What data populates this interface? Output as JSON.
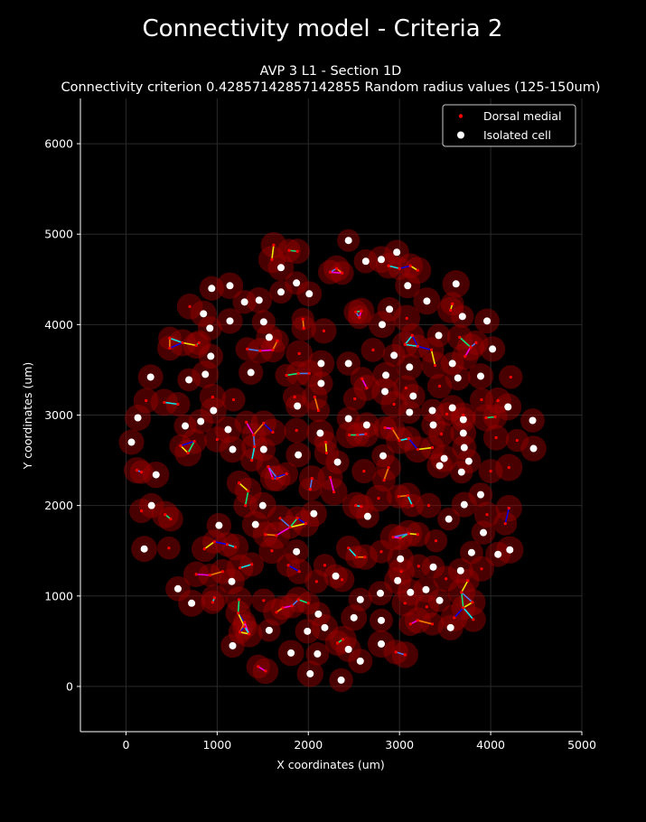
{
  "figure": {
    "suptitle": "Connectivity model - Criteria 2",
    "background_color": "#000000",
    "foreground_color": "#ffffff"
  },
  "chart_data": {
    "type": "scatter",
    "title_line1": "AVP 3 L1 - Section 1D",
    "title_line2": "Connectivity criterion 0.42857142857142855  Random radius values (125-150um)",
    "xlabel": "X coordinates (um)",
    "ylabel": "Y coordinates (um)",
    "xlim": [
      -500,
      5000
    ],
    "ylim": [
      -500,
      6500
    ],
    "xticks": [
      0,
      1000,
      2000,
      3000,
      4000,
      5000
    ],
    "yticks": [
      0,
      1000,
      2000,
      3000,
      4000,
      5000,
      6000
    ],
    "grid": true,
    "legend_position": "top-right",
    "legend": [
      {
        "label": "Dorsal medial",
        "color": "#ff0000",
        "marker": "small-dot"
      },
      {
        "label": "Isolated cell",
        "color": "#ffffff",
        "marker": "dot"
      }
    ],
    "edge_colors": [
      "#ffff00",
      "#00ff88",
      "#4488ff",
      "#ff00ff",
      "#ff8800",
      "#00ffff",
      "#0000ff"
    ],
    "series": [
      {
        "name": "Isolated cell",
        "color": "#ffffff",
        "points": [
          [
            2440,
            4930
          ],
          [
            2970,
            4800
          ],
          [
            2800,
            4720
          ],
          [
            2630,
            4700
          ],
          [
            1700,
            4630
          ],
          [
            1870,
            4460
          ],
          [
            3090,
            4430
          ],
          [
            3620,
            4450
          ],
          [
            940,
            4400
          ],
          [
            1140,
            4430
          ],
          [
            1300,
            4250
          ],
          [
            1460,
            4270
          ],
          [
            1700,
            4360
          ],
          [
            2010,
            4340
          ],
          [
            3300,
            4260
          ],
          [
            2890,
            4170
          ],
          [
            850,
            4120
          ],
          [
            1510,
            4030
          ],
          [
            1140,
            4040
          ],
          [
            3690,
            4090
          ],
          [
            3960,
            4040
          ],
          [
            2810,
            4000
          ],
          [
            920,
            3960
          ],
          [
            1570,
            3860
          ],
          [
            3430,
            3880
          ],
          [
            4020,
            3730
          ],
          [
            2940,
            3660
          ],
          [
            930,
            3650
          ],
          [
            2140,
            3570
          ],
          [
            2440,
            3570
          ],
          [
            3110,
            3530
          ],
          [
            3580,
            3570
          ],
          [
            270,
            3420
          ],
          [
            870,
            3450
          ],
          [
            1370,
            3470
          ],
          [
            2850,
            3440
          ],
          [
            2140,
            3350
          ],
          [
            3890,
            3430
          ],
          [
            690,
            3390
          ],
          [
            3640,
            3410
          ],
          [
            2840,
            3260
          ],
          [
            3150,
            3210
          ],
          [
            960,
            3050
          ],
          [
            1880,
            3100
          ],
          [
            3580,
            3080
          ],
          [
            3110,
            3030
          ],
          [
            3700,
            2950
          ],
          [
            4190,
            3090
          ],
          [
            4460,
            2940
          ],
          [
            130,
            2970
          ],
          [
            2440,
            2960
          ],
          [
            2640,
            2890
          ],
          [
            650,
            2880
          ],
          [
            820,
            2930
          ],
          [
            1120,
            2840
          ],
          [
            3370,
            2890
          ],
          [
            3700,
            2800
          ],
          [
            3360,
            3050
          ],
          [
            60,
            2700
          ],
          [
            2130,
            2800
          ],
          [
            3710,
            2640
          ],
          [
            1170,
            2620
          ],
          [
            1510,
            2620
          ],
          [
            4470,
            2630
          ],
          [
            2820,
            2550
          ],
          [
            1890,
            2560
          ],
          [
            3490,
            2520
          ],
          [
            3760,
            2490
          ],
          [
            330,
            2340
          ],
          [
            2320,
            2480
          ],
          [
            3440,
            2440
          ],
          [
            3680,
            2370
          ],
          [
            280,
            2000
          ],
          [
            1500,
            2000
          ],
          [
            3890,
            2120
          ],
          [
            2060,
            1910
          ],
          [
            2650,
            1880
          ],
          [
            3710,
            2010
          ],
          [
            3540,
            1850
          ],
          [
            1020,
            1780
          ],
          [
            1420,
            1790
          ],
          [
            3920,
            1700
          ],
          [
            200,
            1520
          ],
          [
            3790,
            1480
          ],
          [
            4080,
            1460
          ],
          [
            4210,
            1510
          ],
          [
            1870,
            1490
          ],
          [
            3010,
            1410
          ],
          [
            2300,
            1220
          ],
          [
            1160,
            1160
          ],
          [
            3370,
            1320
          ],
          [
            3670,
            1280
          ],
          [
            2980,
            1170
          ],
          [
            2790,
            1030
          ],
          [
            3120,
            1040
          ],
          [
            2570,
            960
          ],
          [
            3290,
            1070
          ],
          [
            3440,
            950
          ],
          [
            570,
            1080
          ],
          [
            720,
            920
          ],
          [
            2110,
            800
          ],
          [
            2500,
            760
          ],
          [
            2800,
            730
          ],
          [
            3560,
            650
          ],
          [
            1570,
            620
          ],
          [
            1990,
            610
          ],
          [
            2180,
            650
          ],
          [
            1170,
            450
          ],
          [
            1810,
            370
          ],
          [
            2100,
            360
          ],
          [
            2440,
            410
          ],
          [
            2800,
            470
          ],
          [
            2570,
            280
          ],
          [
            2020,
            140
          ],
          [
            2360,
            70
          ]
        ]
      },
      {
        "name": "Dorsal medial",
        "color": "#ff0000",
        "points": [
          [
            1620,
            4880
          ],
          [
            1790,
            4820
          ],
          [
            1880,
            4810
          ],
          [
            1600,
            4720
          ],
          [
            2240,
            4580
          ],
          [
            2310,
            4620
          ],
          [
            2370,
            4570
          ],
          [
            2880,
            4650
          ],
          [
            3000,
            4620
          ],
          [
            3120,
            4650
          ],
          [
            3200,
            4600
          ],
          [
            2520,
            4140
          ],
          [
            2580,
            4150
          ],
          [
            2560,
            4080
          ],
          [
            2170,
            3930
          ],
          [
            1940,
            4060
          ],
          [
            1950,
            3960
          ],
          [
            3080,
            4070
          ],
          [
            3140,
            3880
          ],
          [
            3560,
            4160
          ],
          [
            3580,
            4230
          ],
          [
            3660,
            3860
          ],
          [
            3780,
            3750
          ],
          [
            3840,
            3800
          ],
          [
            3720,
            3650
          ],
          [
            4220,
            3420
          ],
          [
            700,
            4200
          ],
          [
            480,
            3850
          ],
          [
            480,
            3740
          ],
          [
            620,
            3800
          ],
          [
            800,
            3800
          ],
          [
            770,
            3770
          ],
          [
            1330,
            3730
          ],
          [
            1470,
            3710
          ],
          [
            1660,
            3820
          ],
          [
            1610,
            3720
          ],
          [
            1900,
            3680
          ],
          [
            2710,
            3720
          ],
          [
            3060,
            3780
          ],
          [
            3200,
            3760
          ],
          [
            3350,
            3720
          ],
          [
            1760,
            3440
          ],
          [
            1890,
            3460
          ],
          [
            2010,
            3460
          ],
          [
            2590,
            3400
          ],
          [
            2640,
            3300
          ],
          [
            2510,
            3180
          ],
          [
            3070,
            3300
          ],
          [
            3390,
            3550
          ],
          [
            3440,
            3320
          ],
          [
            2940,
            3120
          ],
          [
            1850,
            3200
          ],
          [
            2070,
            3200
          ],
          [
            2110,
            3050
          ],
          [
            220,
            3160
          ],
          [
            420,
            3140
          ],
          [
            570,
            3120
          ],
          [
            950,
            3200
          ],
          [
            1180,
            3170
          ],
          [
            1000,
            2730
          ],
          [
            600,
            2660
          ],
          [
            750,
            2710
          ],
          [
            680,
            2580
          ],
          [
            1400,
            2780
          ],
          [
            1410,
            2650
          ],
          [
            1320,
            2920
          ],
          [
            1510,
            2910
          ],
          [
            2190,
            2700
          ],
          [
            2200,
            2580
          ],
          [
            2450,
            2780
          ],
          [
            2540,
            2780
          ],
          [
            2630,
            2790
          ],
          [
            2840,
            2860
          ],
          [
            2920,
            2850
          ],
          [
            3000,
            2720
          ],
          [
            3100,
            2740
          ],
          [
            3200,
            2620
          ],
          [
            3360,
            2640
          ],
          [
            3460,
            2790
          ],
          [
            3520,
            3010
          ],
          [
            3700,
            3000
          ],
          [
            3950,
            2970
          ],
          [
            4050,
            2980
          ],
          [
            4080,
            3160
          ],
          [
            3900,
            3170
          ],
          [
            4060,
            2750
          ],
          [
            4290,
            2720
          ],
          [
            1870,
            2830
          ],
          [
            1610,
            2810
          ],
          [
            1560,
            2430
          ],
          [
            1660,
            2300
          ],
          [
            1760,
            2350
          ],
          [
            1610,
            2300
          ],
          [
            1380,
            2500
          ],
          [
            1240,
            2250
          ],
          [
            1340,
            2160
          ],
          [
            1310,
            2000
          ],
          [
            2040,
            2300
          ],
          [
            2020,
            2180
          ],
          [
            2240,
            2310
          ],
          [
            2280,
            2150
          ],
          [
            2610,
            2380
          ],
          [
            2770,
            2080
          ],
          [
            2990,
            2100
          ],
          [
            3090,
            2110
          ],
          [
            3140,
            2000
          ],
          [
            3320,
            2000
          ],
          [
            4200,
            2420
          ],
          [
            4000,
            2380
          ],
          [
            4200,
            1970
          ],
          [
            4160,
            1800
          ],
          [
            3960,
            1900
          ],
          [
            3400,
            1610
          ],
          [
            3200,
            1680
          ],
          [
            3100,
            1690
          ],
          [
            3010,
            1640
          ],
          [
            2930,
            1650
          ],
          [
            2800,
            1490
          ],
          [
            2620,
            1430
          ],
          [
            2530,
            1430
          ],
          [
            2440,
            1530
          ],
          [
            1970,
            1800
          ],
          [
            1880,
            1860
          ],
          [
            1690,
            1860
          ],
          [
            1800,
            1760
          ],
          [
            1530,
            1680
          ],
          [
            1650,
            1670
          ],
          [
            1110,
            1570
          ],
          [
            1200,
            1540
          ],
          [
            970,
            1600
          ],
          [
            860,
            1520
          ],
          [
            470,
            1530
          ],
          [
            490,
            1850
          ],
          [
            430,
            1900
          ],
          [
            170,
            1940
          ],
          [
            120,
            2390
          ],
          [
            170,
            2370
          ],
          [
            770,
            1240
          ],
          [
            920,
            1230
          ],
          [
            1060,
            1270
          ],
          [
            1250,
            1310
          ],
          [
            1380,
            1350
          ],
          [
            1600,
            1500
          ],
          [
            1780,
            1340
          ],
          [
            1900,
            1270
          ],
          [
            2180,
            1340
          ],
          [
            2370,
            1180
          ],
          [
            3020,
            1270
          ],
          [
            3210,
            1330
          ],
          [
            3510,
            1190
          ],
          [
            3750,
            1170
          ],
          [
            3900,
            1300
          ],
          [
            3680,
            1040
          ],
          [
            3300,
            880
          ],
          [
            3060,
            920
          ],
          [
            3120,
            690
          ],
          [
            3200,
            730
          ],
          [
            3360,
            690
          ],
          [
            3810,
            740
          ],
          [
            3600,
            760
          ],
          [
            3700,
            870
          ],
          [
            3800,
            930
          ],
          [
            2090,
            1160
          ],
          [
            1890,
            960
          ],
          [
            2000,
            920
          ],
          [
            1820,
            890
          ],
          [
            1650,
            820
          ],
          [
            1720,
            870
          ],
          [
            970,
            980
          ],
          [
            950,
            930
          ],
          [
            1230,
            810
          ],
          [
            1300,
            710
          ],
          [
            1300,
            660
          ],
          [
            1350,
            580
          ],
          [
            1510,
            950
          ],
          [
            1240,
            960
          ],
          [
            1250,
            600
          ],
          [
            2320,
            480
          ],
          [
            2380,
            520
          ],
          [
            2960,
            380
          ],
          [
            3060,
            350
          ],
          [
            1450,
            220
          ],
          [
            1530,
            170
          ],
          [
            2830,
            2280
          ],
          [
            2880,
            2420
          ],
          [
            2520,
            2000
          ],
          [
            2580,
            1990
          ]
        ]
      }
    ]
  }
}
